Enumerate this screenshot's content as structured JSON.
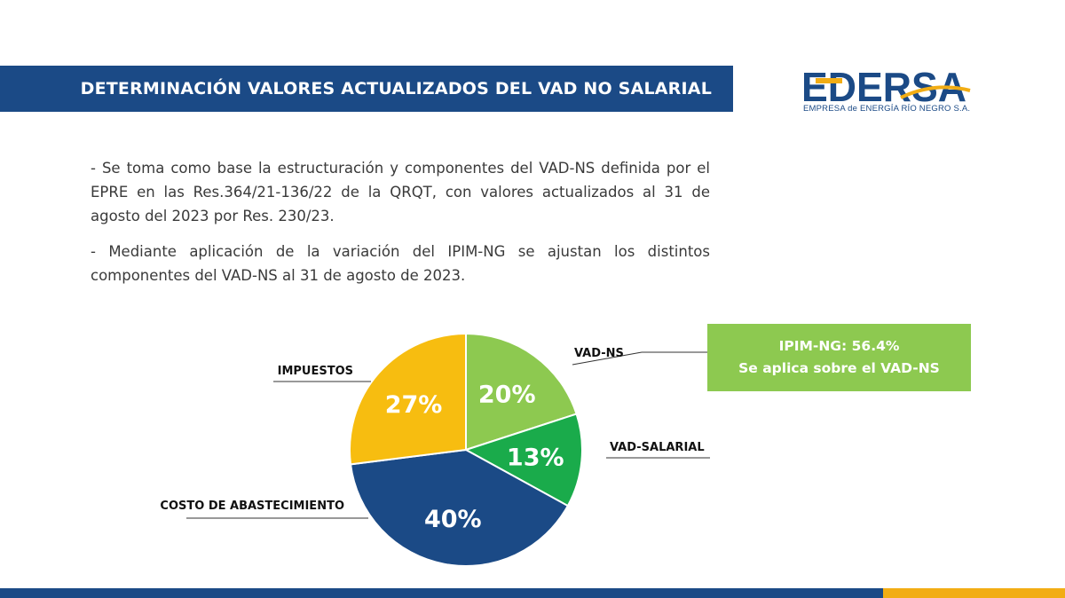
{
  "header": {
    "title": "DETERMINACIÓN VALORES ACTUALIZADOS DEL VAD NO SALARIAL",
    "bar_color": "#1b4a86"
  },
  "logo": {
    "text": "EDERSA",
    "tagline": "EMPRESA de ENERGÍA RÍO NEGRO S.A.",
    "primary_color": "#1b4a86",
    "accent_color": "#f2ad14"
  },
  "body": {
    "paragraphs": [
      "- Se toma como base la estructuración y componentes del VAD-NS definida por el EPRE en las Res.364/21-136/22 de la QRQT, con valores actualizados al 31 de agosto del 2023 por Res. 230/23.",
      "- Mediante aplicación de la variación del IPIM-NG se ajustan los distintos componentes del VAD-NS al 31 de agosto de 2023."
    ]
  },
  "callout": {
    "line1": "IPIM-NG: 56.4%",
    "line2": "Se aplica sobre el VAD-NS",
    "color": "#8dc950"
  },
  "chart_data": {
    "type": "pie",
    "start": "12 o'clock",
    "direction": "clockwise",
    "slices": [
      {
        "label": "VAD-NS",
        "value": 20,
        "display": "20%",
        "color": "#8dc950",
        "label_side": "right"
      },
      {
        "label": "VAD-SALARIAL",
        "value": 13,
        "display": "13%",
        "color": "#1aab4b",
        "label_side": "right"
      },
      {
        "label": "COSTO DE ABASTECIMIENTO",
        "value": 40,
        "display": "40%",
        "color": "#1b4a86",
        "label_side": "left"
      },
      {
        "label": "IMPUESTOS",
        "value": 27,
        "display": "27%",
        "color": "#f7bd10",
        "label_side": "left"
      }
    ]
  }
}
